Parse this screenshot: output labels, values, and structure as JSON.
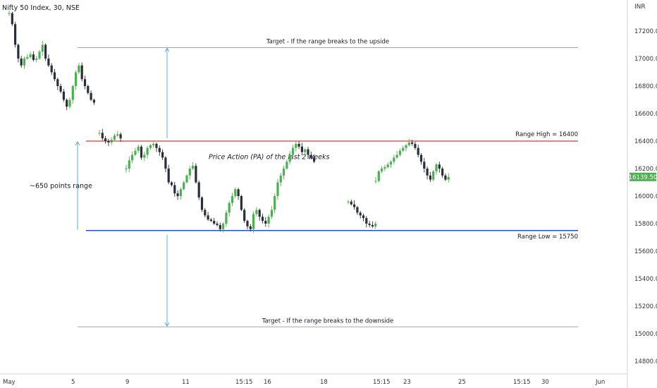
{
  "header": {
    "symbol_title": "Nifty 50 Index, 30, NSE"
  },
  "chart_data": {
    "type": "candlestick",
    "currency_label": "INR",
    "y_ticks": [
      "17200.00",
      "17000.00",
      "16800.00",
      "16600.00",
      "16400.00",
      "16200.00",
      "16000.00",
      "15800.00",
      "15600.00",
      "15400.00",
      "15200.00",
      "15000.00",
      "14800.00"
    ],
    "y_tick_values": [
      17200,
      17000,
      16800,
      16600,
      16400,
      16200,
      16000,
      15800,
      15600,
      15400,
      15200,
      15000,
      14800
    ],
    "ylim": [
      14740,
      17420
    ],
    "x_ticks": [
      "May",
      "5",
      "9",
      "11",
      "15:15",
      "16",
      "18",
      "15:15",
      "23",
      "25",
      "15:15",
      "30",
      "Jun"
    ],
    "last_price": "16139.50",
    "last_price_value": 16139.5,
    "annotations": {
      "target_up": "Target - If the range breaks to the upside",
      "target_up_value": 17080,
      "target_down": "Target - If the range breaks to the downside",
      "target_down_value": 15050,
      "range_high": "Range High = 16400",
      "range_high_value": 16400,
      "range_low": "Range Low = 15750",
      "range_low_value": 15750,
      "points_range": "~650 points range",
      "price_action": "Price Action (PA) of the last 2 weeks"
    },
    "colors": {
      "up": "#4caf50",
      "down": "#2a2e39",
      "range_high_line": "#e53935",
      "range_low_line": "#1e4fd6",
      "arrow": "#4aa3df",
      "target_line": "#888888",
      "last_price_bg": "#4caf50"
    },
    "segments": [
      {
        "start": 17330,
        "path": [
          17330,
          17250,
          17100,
          17000,
          16950,
          17000,
          17010,
          17030,
          16990,
          17000,
          17050,
          17100,
          17000,
          16950,
          16900,
          16850,
          16800,
          16760,
          16700,
          16650,
          16700,
          16800,
          16900,
          16950,
          16850,
          16800,
          16750,
          16700,
          16680
        ]
      },
      {
        "start": 16460,
        "path": [
          16460,
          16420,
          16400,
          16390,
          16410,
          16440,
          16450,
          16420
        ]
      },
      {
        "start": 16200,
        "path": [
          16200,
          16260,
          16300,
          16330,
          16360,
          16280,
          16300,
          16350,
          16370,
          16380,
          16350,
          16320,
          16280,
          16200,
          16100,
          16080,
          16020,
          16000,
          16050,
          16100,
          16150,
          16200,
          16220,
          16100,
          15990,
          15900,
          15860,
          15830,
          15820,
          15800,
          15790,
          15760,
          15800,
          15880,
          15950,
          16000,
          16050,
          16000,
          15900,
          15820,
          15780,
          15760,
          15870,
          15900,
          15850,
          15820,
          15800,
          15850,
          15900,
          16000,
          16100,
          16150,
          16200,
          16250,
          16300,
          16350,
          16380,
          16360,
          16320,
          16340,
          16300,
          16280,
          16250
        ]
      },
      {
        "start": 15960,
        "path": [
          15960,
          15940,
          15920,
          15880,
          15860,
          15840,
          15800,
          15790,
          15780,
          15800
        ]
      },
      {
        "start": 16110,
        "path": [
          16110,
          16180,
          16200,
          16210,
          16230,
          16250,
          16280,
          16300,
          16330,
          16350,
          16370,
          16390,
          16380,
          16350,
          16300,
          16250,
          16200,
          16150,
          16120,
          16180,
          16230,
          16200,
          16150,
          16120,
          16139.5
        ]
      }
    ]
  }
}
